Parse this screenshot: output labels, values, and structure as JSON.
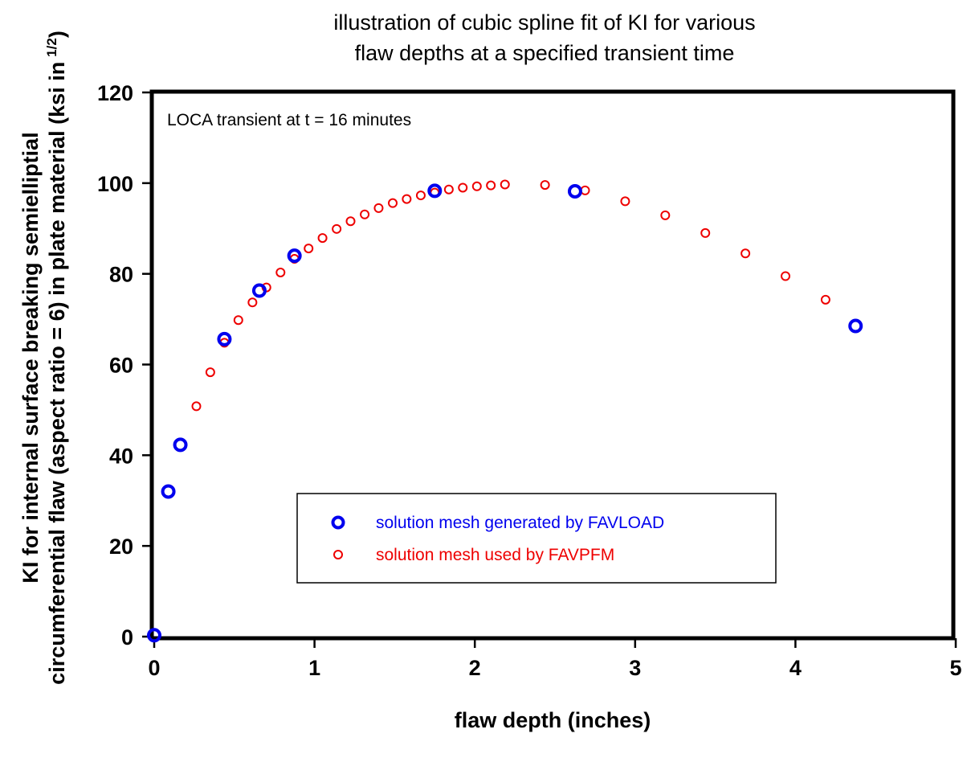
{
  "chart_data": {
    "type": "scatter",
    "title_line1": "illustration of cubic spline fit of KI for various",
    "title_line2": "flaw depths at a specified transient time",
    "xlabel": "flaw depth (inches)",
    "ylabel_line1": "KI for internal surface breaking semielliptial",
    "ylabel_line2_main": "circumferential flaw (aspect ratio = 6) in plate material (ksi in",
    "ylabel_line2_sup": "1/2",
    "ylabel_line2_end": ")",
    "annotation": "LOCA transient at t = 16 minutes",
    "xlim": [
      0,
      5
    ],
    "ylim": [
      0,
      120
    ],
    "x_ticks": [
      "0",
      "1",
      "2",
      "3",
      "4",
      "5"
    ],
    "y_ticks": [
      "0",
      "20",
      "40",
      "60",
      "80",
      "100",
      "120"
    ],
    "grid": false,
    "legend_position": "lower-center",
    "series": [
      {
        "name": "solution mesh generated by FAVLOAD",
        "color": "#0000ee",
        "marker": "open-circle-large",
        "x": [
          0.0,
          0.088,
          0.163,
          0.438,
          0.656,
          0.875,
          1.75,
          2.625,
          4.375
        ],
        "y": [
          0.3,
          32.0,
          42.3,
          65.6,
          76.3,
          84.0,
          98.3,
          98.2,
          68.5
        ]
      },
      {
        "name": "solution mesh used by FAVPFM",
        "color": "#ee0000",
        "marker": "open-circle-small",
        "x": [
          0.263,
          0.35,
          0.438,
          0.525,
          0.613,
          0.7,
          0.788,
          0.875,
          0.963,
          1.05,
          1.138,
          1.225,
          1.313,
          1.4,
          1.488,
          1.575,
          1.663,
          1.75,
          1.838,
          1.925,
          2.013,
          2.1,
          2.188,
          2.438,
          2.688,
          2.938,
          3.188,
          3.438,
          3.688,
          3.938,
          4.188
        ],
        "y": [
          50.8,
          58.3,
          64.8,
          69.8,
          73.7,
          77.0,
          80.3,
          83.3,
          85.6,
          87.9,
          89.9,
          91.6,
          93.1,
          94.5,
          95.6,
          96.5,
          97.3,
          97.9,
          98.6,
          99.0,
          99.3,
          99.5,
          99.7,
          99.6,
          98.4,
          96.0,
          92.9,
          89.0,
          84.5,
          79.5,
          74.3
        ]
      }
    ]
  }
}
